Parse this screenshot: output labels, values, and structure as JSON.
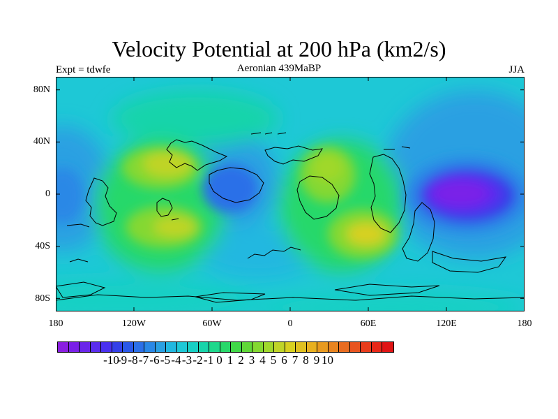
{
  "title": "Velocity Potential at 200 hPa (km2/s)",
  "left_subtitle": "Expt = tdwfe",
  "center_subtitle": "Aeronian 439MaBP",
  "right_subtitle": "JJA",
  "lat_ticks": [
    "80N",
    "40N",
    "0",
    "40S",
    "80S"
  ],
  "lon_ticks": [
    "180",
    "120W",
    "60W",
    "0",
    "60E",
    "120E",
    "180"
  ],
  "colorbar": {
    "labels": [
      "-10",
      "-9",
      "-8",
      "-7",
      "-6",
      "-5",
      "-4",
      "-3",
      "-2",
      "-1",
      "0",
      "1",
      "2",
      "3",
      "4",
      "5",
      "6",
      "7",
      "8",
      "9",
      "10"
    ],
    "colors": [
      "#8a1ee0",
      "#7a20e8",
      "#6a26ea",
      "#5a2cee",
      "#4a30f0",
      "#3440e8",
      "#2a58e8",
      "#2c70e8",
      "#2a88e6",
      "#2aa0e2",
      "#22b8e0",
      "#1ec8d6",
      "#18d0c4",
      "#18d4aa",
      "#1ed88c",
      "#28d86a",
      "#40d848",
      "#60d838",
      "#84d830",
      "#a0d82c",
      "#c0d428",
      "#d8d020",
      "#e0c020",
      "#e8b020",
      "#e89a20",
      "#e88420",
      "#e86c20",
      "#e85420",
      "#e83c1c",
      "#e82818",
      "#e01414"
    ]
  },
  "chart_data": {
    "type": "heatmap",
    "title": "Velocity Potential at 200 hPa (km2/s)",
    "units": "km2/s",
    "level": "200 hPa",
    "season": "JJA",
    "experiment": "tdwfe",
    "period": "Aeronian 439MaBP",
    "x_range": [
      -180,
      180
    ],
    "y_range": [
      -90,
      90
    ],
    "x_ticks": [
      -180,
      -120,
      -60,
      0,
      60,
      120,
      180
    ],
    "y_ticks": [
      80,
      40,
      0,
      -40,
      -80
    ],
    "color_levels": [
      -10,
      -9,
      -8,
      -7,
      -6,
      -5,
      -4,
      -3,
      -2,
      -1,
      0,
      1,
      2,
      3,
      4,
      5,
      6,
      7,
      8,
      9,
      10
    ],
    "features": [
      {
        "lon": 140,
        "lat": 0,
        "value": -9
      },
      {
        "lon": -170,
        "lat": 2,
        "value": -4
      },
      {
        "lon": -40,
        "lat": 5,
        "value": -3
      },
      {
        "lon": -95,
        "lat": 20,
        "value": 4
      },
      {
        "lon": -100,
        "lat": -25,
        "value": 4
      },
      {
        "lon": 30,
        "lat": 20,
        "value": 3
      },
      {
        "lon": 55,
        "lat": -25,
        "value": 5
      }
    ]
  }
}
